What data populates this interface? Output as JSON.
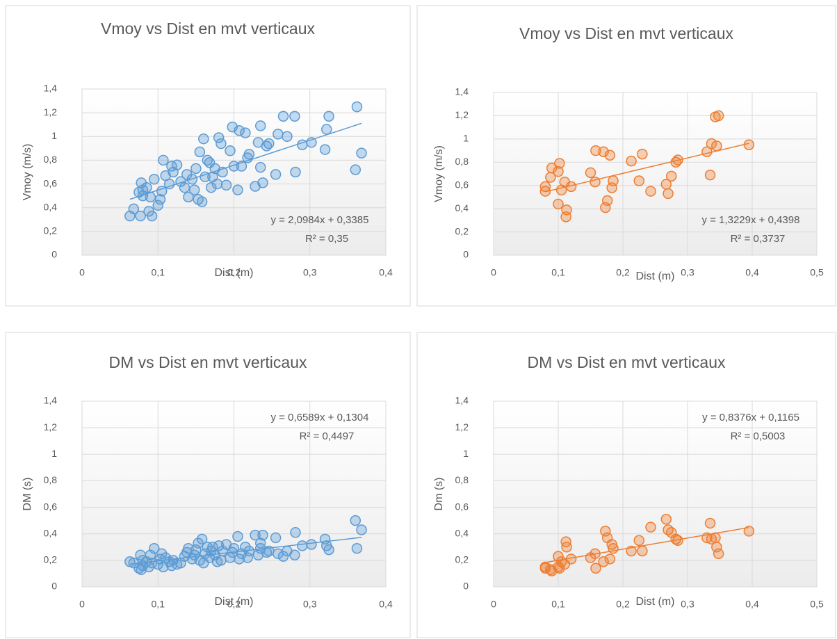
{
  "chart_data": [
    {
      "type": "scatter",
      "title": "Vmoy vs Dist en mvt verticaux",
      "x_label": "Dist (m)",
      "y_label": "Vmoy (m/s)",
      "color": "#5b9bd5",
      "xlim": [
        0,
        0.4
      ],
      "xticks": [
        0,
        {
          "value": 0.1,
          "label": "0,1"
        },
        {
          "value": 0.2,
          "label": "0,2"
        },
        {
          "value": 0.3,
          "label": "0,3"
        },
        {
          "value": 0.4,
          "label": "0,4"
        }
      ],
      "ylim": [
        0,
        1.4
      ],
      "yticks": [
        0,
        {
          "value": 0.2,
          "label": "0,2"
        },
        {
          "value": 0.4,
          "label": "0,4"
        },
        {
          "value": 0.6,
          "label": "0,6"
        },
        {
          "value": 0.8,
          "label": "0,8"
        },
        1,
        {
          "value": 1.2,
          "label": "1,2"
        },
        {
          "value": 1.4,
          "label": "1,4"
        }
      ],
      "grid": true,
      "x": [
        0.063,
        0.068,
        0.075,
        0.077,
        0.078,
        0.08,
        0.08,
        0.085,
        0.088,
        0.09,
        0.092,
        0.095,
        0.1,
        0.103,
        0.105,
        0.107,
        0.11,
        0.115,
        0.118,
        0.12,
        0.125,
        0.13,
        0.135,
        0.138,
        0.14,
        0.145,
        0.148,
        0.15,
        0.153,
        0.155,
        0.158,
        0.16,
        0.162,
        0.165,
        0.168,
        0.17,
        0.172,
        0.175,
        0.178,
        0.18,
        0.183,
        0.185,
        0.19,
        0.195,
        0.198,
        0.2,
        0.205,
        0.207,
        0.21,
        0.215,
        0.218,
        0.22,
        0.228,
        0.232,
        0.235,
        0.235,
        0.238,
        0.243,
        0.246,
        0.255,
        0.258,
        0.265,
        0.27,
        0.28,
        0.281,
        0.29,
        0.302,
        0.32,
        0.322,
        0.325,
        0.36,
        0.362,
        0.368
      ],
      "values": [
        0.33,
        0.39,
        0.53,
        0.33,
        0.61,
        0.55,
        0.5,
        0.57,
        0.37,
        0.49,
        0.33,
        0.64,
        0.42,
        0.47,
        0.54,
        0.8,
        0.67,
        0.6,
        0.75,
        0.7,
        0.76,
        0.62,
        0.57,
        0.68,
        0.49,
        0.64,
        0.55,
        0.73,
        0.47,
        0.87,
        0.45,
        0.98,
        0.66,
        0.8,
        0.78,
        0.57,
        0.66,
        0.73,
        0.6,
        0.99,
        0.94,
        0.7,
        0.59,
        0.88,
        1.08,
        0.75,
        0.55,
        1.05,
        0.75,
        1.03,
        0.82,
        0.85,
        0.58,
        0.95,
        1.09,
        0.74,
        0.61,
        0.92,
        0.94,
        0.68,
        1.02,
        1.17,
        1.0,
        1.17,
        0.7,
        0.93,
        0.95,
        0.89,
        1.06,
        1.17,
        0.72,
        1.25,
        0.86
      ],
      "trendline": {
        "slope": 2.0984,
        "intercept": 0.3385,
        "x_range": [
          0.063,
          0.368
        ],
        "label": "y = 2,0984x + 0,3385",
        "r2_label": "R² = 0,35",
        "label_position": "lower right"
      }
    },
    {
      "type": "scatter",
      "title": "Vmoy vs Dist en mvt verticaux",
      "x_label": "Dist (m)",
      "y_label": "Vmoy (m/s)",
      "color": "#ed7d31",
      "xlim": [
        0,
        0.5
      ],
      "xticks": [
        0,
        {
          "value": 0.1,
          "label": "0,1"
        },
        {
          "value": 0.2,
          "label": "0,2"
        },
        {
          "value": 0.3,
          "label": "0,3"
        },
        {
          "value": 0.4,
          "label": "0,4"
        },
        {
          "value": 0.5,
          "label": "0,5"
        }
      ],
      "ylim": [
        0,
        1.4
      ],
      "yticks": [
        0,
        {
          "value": 0.2,
          "label": "0,2"
        },
        {
          "value": 0.4,
          "label": "0,4"
        },
        {
          "value": 0.6,
          "label": "0,6"
        },
        {
          "value": 0.8,
          "label": "0,8"
        },
        1,
        {
          "value": 1.2,
          "label": "1,2"
        },
        {
          "value": 1.4,
          "label": "1,4"
        }
      ],
      "grid": true,
      "x": [
        0.08,
        0.08,
        0.088,
        0.09,
        0.1,
        0.1,
        0.102,
        0.105,
        0.11,
        0.112,
        0.113,
        0.12,
        0.15,
        0.157,
        0.158,
        0.17,
        0.173,
        0.176,
        0.18,
        0.183,
        0.185,
        0.213,
        0.225,
        0.23,
        0.243,
        0.267,
        0.27,
        0.275,
        0.282,
        0.285,
        0.33,
        0.335,
        0.337,
        0.343,
        0.345,
        0.348,
        0.395
      ],
      "values": [
        0.55,
        0.59,
        0.67,
        0.75,
        0.44,
        0.72,
        0.79,
        0.56,
        0.63,
        0.33,
        0.39,
        0.59,
        0.71,
        0.63,
        0.9,
        0.89,
        0.41,
        0.47,
        0.86,
        0.58,
        0.64,
        0.81,
        0.64,
        0.87,
        0.55,
        0.61,
        0.53,
        0.68,
        0.8,
        0.82,
        0.89,
        0.69,
        0.96,
        1.19,
        0.94,
        1.2,
        0.95
      ],
      "trendline": {
        "slope": 1.3229,
        "intercept": 0.4398,
        "x_range": [
          0.08,
          0.395
        ],
        "label": "y = 1,3229x + 0,4398",
        "r2_label": "R² = 0,3737",
        "label_position": "lower right"
      }
    },
    {
      "type": "scatter",
      "title": "DM vs Dist en mvt verticaux",
      "x_label": "Dist (m)",
      "y_label": "DM (s)",
      "color": "#5b9bd5",
      "xlim": [
        0,
        0.4
      ],
      "xticks": [
        0,
        {
          "value": 0.1,
          "label": "0,1"
        },
        {
          "value": 0.2,
          "label": "0,2"
        },
        {
          "value": 0.3,
          "label": "0,3"
        },
        {
          "value": 0.4,
          "label": "0,4"
        }
      ],
      "ylim": [
        0,
        1.4
      ],
      "yticks": [
        0,
        {
          "value": 0.2,
          "label": "0,2"
        },
        {
          "value": 0.4,
          "label": "0,4"
        },
        {
          "value": 0.6,
          "label": "0,6"
        },
        {
          "value": 0.8,
          "label": "0,8"
        },
        1,
        {
          "value": 1.2,
          "label": "1,2"
        },
        {
          "value": 1.4,
          "label": "1,4"
        }
      ],
      "grid": true,
      "x": [
        0.063,
        0.068,
        0.075,
        0.077,
        0.078,
        0.08,
        0.08,
        0.085,
        0.088,
        0.09,
        0.092,
        0.095,
        0.1,
        0.103,
        0.105,
        0.107,
        0.11,
        0.115,
        0.118,
        0.12,
        0.125,
        0.13,
        0.135,
        0.138,
        0.14,
        0.145,
        0.148,
        0.15,
        0.153,
        0.155,
        0.158,
        0.16,
        0.162,
        0.165,
        0.168,
        0.17,
        0.172,
        0.175,
        0.178,
        0.18,
        0.183,
        0.185,
        0.19,
        0.195,
        0.198,
        0.2,
        0.205,
        0.207,
        0.21,
        0.215,
        0.218,
        0.22,
        0.228,
        0.232,
        0.235,
        0.235,
        0.238,
        0.243,
        0.246,
        0.255,
        0.258,
        0.265,
        0.27,
        0.28,
        0.281,
        0.29,
        0.302,
        0.32,
        0.322,
        0.325,
        0.36,
        0.362,
        0.368
      ],
      "values": [
        0.19,
        0.18,
        0.14,
        0.24,
        0.13,
        0.16,
        0.2,
        0.19,
        0.15,
        0.24,
        0.18,
        0.29,
        0.17,
        0.21,
        0.25,
        0.15,
        0.22,
        0.19,
        0.16,
        0.2,
        0.17,
        0.18,
        0.23,
        0.26,
        0.29,
        0.21,
        0.24,
        0.28,
        0.33,
        0.2,
        0.36,
        0.18,
        0.25,
        0.3,
        0.22,
        0.27,
        0.3,
        0.24,
        0.19,
        0.31,
        0.2,
        0.27,
        0.32,
        0.22,
        0.26,
        0.29,
        0.38,
        0.21,
        0.25,
        0.3,
        0.22,
        0.27,
        0.39,
        0.24,
        0.29,
        0.33,
        0.39,
        0.26,
        0.27,
        0.37,
        0.25,
        0.23,
        0.27,
        0.24,
        0.41,
        0.31,
        0.32,
        0.36,
        0.31,
        0.28,
        0.5,
        0.29,
        0.43
      ],
      "trendline": {
        "slope": 0.6589,
        "intercept": 0.1304,
        "x_range": [
          0.063,
          0.368
        ],
        "label": "y = 0,6589x + 0,1304",
        "r2_label": "R² = 0,4497",
        "label_position": "upper right"
      }
    },
    {
      "type": "scatter",
      "title": "DM vs Dist en mvt verticaux",
      "x_label": "Dist (m)",
      "y_label": "Dm (s)",
      "color": "#ed7d31",
      "xlim": [
        0,
        0.5
      ],
      "xticks": [
        0,
        {
          "value": 0.1,
          "label": "0,1"
        },
        {
          "value": 0.2,
          "label": "0,2"
        },
        {
          "value": 0.3,
          "label": "0,3"
        },
        {
          "value": 0.4,
          "label": "0,4"
        },
        {
          "value": 0.5,
          "label": "0,5"
        }
      ],
      "ylim": [
        0,
        1.4
      ],
      "yticks": [
        0,
        {
          "value": 0.2,
          "label": "0,2"
        },
        {
          "value": 0.4,
          "label": "0,4"
        },
        {
          "value": 0.6,
          "label": "0,6"
        },
        {
          "value": 0.8,
          "label": "0,8"
        },
        1,
        {
          "value": 1.2,
          "label": "1,2"
        },
        {
          "value": 1.4,
          "label": "1,4"
        }
      ],
      "grid": true,
      "x": [
        0.08,
        0.08,
        0.088,
        0.09,
        0.1,
        0.1,
        0.102,
        0.105,
        0.11,
        0.112,
        0.113,
        0.12,
        0.15,
        0.157,
        0.158,
        0.17,
        0.173,
        0.176,
        0.18,
        0.183,
        0.185,
        0.213,
        0.225,
        0.23,
        0.243,
        0.267,
        0.27,
        0.275,
        0.282,
        0.285,
        0.33,
        0.335,
        0.337,
        0.343,
        0.345,
        0.348,
        0.395
      ],
      "values": [
        0.15,
        0.14,
        0.13,
        0.12,
        0.23,
        0.15,
        0.14,
        0.19,
        0.17,
        0.34,
        0.3,
        0.21,
        0.22,
        0.25,
        0.14,
        0.19,
        0.42,
        0.37,
        0.21,
        0.32,
        0.29,
        0.27,
        0.35,
        0.27,
        0.45,
        0.51,
        0.43,
        0.41,
        0.36,
        0.35,
        0.37,
        0.48,
        0.36,
        0.37,
        0.3,
        0.25,
        0.42
      ],
      "trendline": {
        "slope": 0.8376,
        "intercept": 0.1165,
        "x_range": [
          0.08,
          0.395
        ],
        "label": "y = 0,8376x + 0,1165",
        "r2_label": "R² = 0,5003",
        "label_position": "upper right"
      }
    }
  ]
}
